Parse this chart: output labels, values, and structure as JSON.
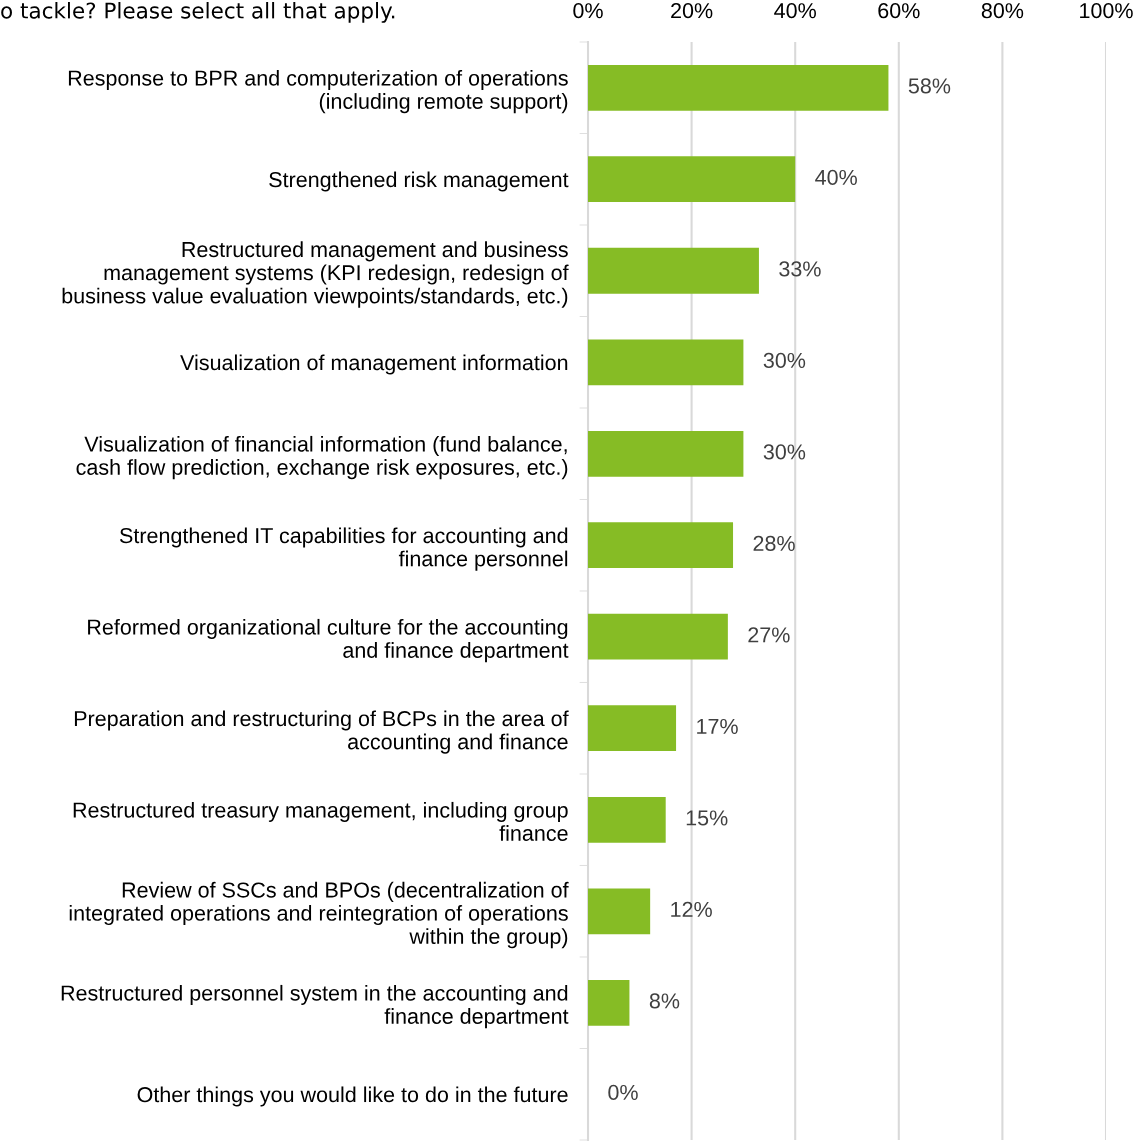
{
  "chart_data": {
    "type": "bar",
    "orientation": "horizontal",
    "title": "o tackle? Please select all that apply.",
    "categories": [
      "Response to BPR and computerization of operations\n(including remote support)",
      "Strengthened risk management",
      "Restructured management and business\nmanagement systems (KPI redesign, redesign of\nbusiness value evaluation viewpoints/standards, etc.)",
      "Visualization of management information",
      "Visualization of financial information (fund balance,\ncash flow prediction, exchange risk exposures, etc.)",
      "Strengthened IT capabilities for accounting and\nfinance personnel",
      "Reformed organizational culture for the accounting\nand finance department",
      "Preparation and restructuring of BCPs in the area of\naccounting and finance",
      "Restructured treasury management, including group\nfinance",
      "Review of SSCs and BPOs (decentralization of\nintegrated operations and reintegration of operations\nwithin the group)",
      "Restructured personnel system in the accounting and\nfinance department",
      "Other things you would like to do in the future"
    ],
    "values": [
      58,
      40,
      33,
      30,
      30,
      28,
      27,
      17,
      15,
      12,
      8,
      0
    ],
    "value_labels": [
      "58%",
      "40%",
      "33%",
      "30%",
      "30%",
      "28%",
      "27%",
      "17%",
      "15%",
      "12%",
      "8%",
      "0%"
    ],
    "color": "#86bc25",
    "xlim": [
      0,
      100
    ],
    "xticks": [
      {
        "value": 0,
        "label": "0%"
      },
      {
        "value": 20,
        "label": "20%"
      },
      {
        "value": 40,
        "label": "40%"
      },
      {
        "value": 60,
        "label": "60%"
      },
      {
        "value": 80,
        "label": "80%"
      },
      {
        "value": 100,
        "label": "100%"
      }
    ],
    "grid": "x"
  }
}
